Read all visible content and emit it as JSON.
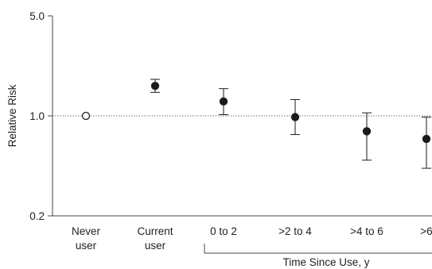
{
  "chart_data": {
    "type": "scatter",
    "ylabel": "Relative Risk",
    "y_scale": "log",
    "ylim": [
      0.2,
      5.0
    ],
    "yticks": [
      {
        "value": 0.2,
        "label": "0.2"
      },
      {
        "value": 1.0,
        "label": "1.0"
      },
      {
        "value": 5.0,
        "label": "5.0"
      }
    ],
    "reference_line": {
      "value": 1.0,
      "style": "dotted"
    },
    "categories": [
      [
        "Never",
        "user"
      ],
      [
        "Current",
        "user"
      ],
      [
        "0 to 2"
      ],
      [
        ">2 to 4"
      ],
      [
        ">4 to 6"
      ],
      [
        ">6"
      ]
    ],
    "bracket_label": "Time Since Use, y",
    "bracket_categories": [
      2,
      3,
      4,
      5
    ],
    "points": [
      {
        "value": 1.0,
        "low": null,
        "high": null,
        "marker": "open"
      },
      {
        "value": 1.62,
        "low": 1.46,
        "high": 1.8,
        "marker": "filled"
      },
      {
        "value": 1.26,
        "low": 1.02,
        "high": 1.55,
        "marker": "filled"
      },
      {
        "value": 0.98,
        "low": 0.74,
        "high": 1.3,
        "marker": "filled"
      },
      {
        "value": 0.78,
        "low": 0.49,
        "high": 1.05,
        "marker": "filled"
      },
      {
        "value": 0.69,
        "low": 0.43,
        "high": 0.98,
        "marker": "filled"
      }
    ],
    "colors": {
      "marker": "#1a1a1a",
      "axis": "#444444",
      "reference": "#555555"
    }
  }
}
